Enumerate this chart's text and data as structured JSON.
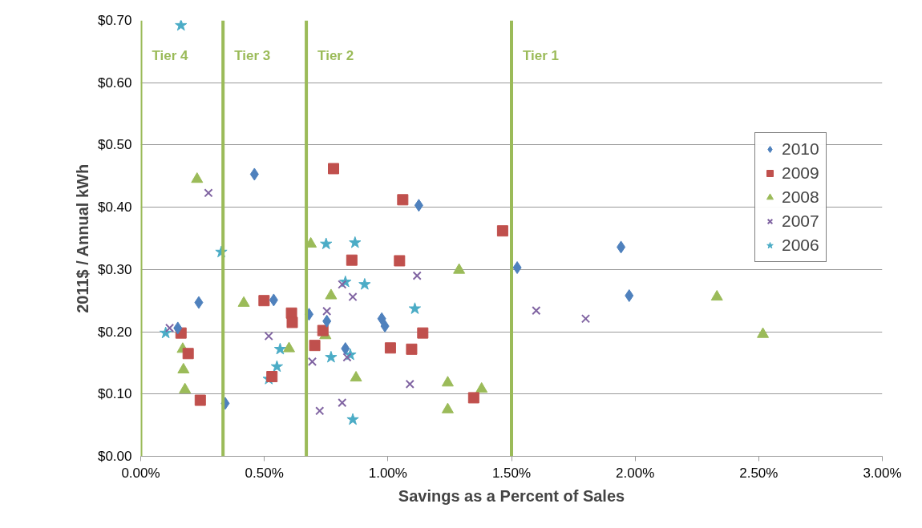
{
  "chart_data": {
    "type": "scatter",
    "xlabel": "Savings as a Percent of Sales",
    "ylabel": "2011$ / Annual kWh",
    "xlim": [
      0,
      3
    ],
    "xticks": [
      {
        "value": 0,
        "label": "0.00%"
      },
      {
        "value": 0.5,
        "label": "0.50%"
      },
      {
        "value": 1,
        "label": "1.00%"
      },
      {
        "value": 1.5,
        "label": "1.50%"
      },
      {
        "value": 2,
        "label": "2.00%"
      },
      {
        "value": 2.5,
        "label": "2.50%"
      },
      {
        "value": 3,
        "label": "3.00%"
      }
    ],
    "ylim": [
      0,
      0.7
    ],
    "yticks": [
      {
        "value": 0,
        "label": "$0.00"
      },
      {
        "value": 0.1,
        "label": "$0.10"
      },
      {
        "value": 0.2,
        "label": "$0.20"
      },
      {
        "value": 0.3,
        "label": "$0.30"
      },
      {
        "value": 0.4,
        "label": "$0.40"
      },
      {
        "value": 0.5,
        "label": "$0.50"
      },
      {
        "value": 0.6,
        "label": "$0.60"
      },
      {
        "value": 0.7,
        "label": "$0.70"
      }
    ],
    "grid": "y",
    "legend": "top right",
    "ref_lines": [
      {
        "axis": "x",
        "value": 0,
        "label": "Tier 4",
        "color": "#9bbb59"
      },
      {
        "axis": "x",
        "value": 0.333,
        "label": "Tier 3",
        "color": "#9bbb59"
      },
      {
        "axis": "x",
        "value": 0.67,
        "label": "Tier 2",
        "color": "#9bbb59"
      },
      {
        "axis": "x",
        "value": 1.5,
        "label": "Tier 1",
        "color": "#9bbb59"
      }
    ],
    "series": [
      {
        "name": "2010",
        "color": "#4f81bd",
        "marker": "diamond",
        "x": [
          0.46,
          0.235,
          0.538,
          0.681,
          0.753,
          0.975,
          0.988,
          0.15,
          0.828,
          0.342,
          1.125,
          1.523,
          1.943,
          1.976
        ],
        "values": [
          0.453,
          0.247,
          0.251,
          0.228,
          0.217,
          0.221,
          0.209,
          0.206,
          0.173,
          0.085,
          0.403,
          0.303,
          0.336,
          0.258
        ]
      },
      {
        "name": "2009",
        "color": "#c0504d",
        "marker": "square",
        "x": [
          0.78,
          0.854,
          0.499,
          0.61,
          0.613,
          0.163,
          0.737,
          1.01,
          0.192,
          0.704,
          0.531,
          0.241,
          1.06,
          1.464,
          1.047,
          1.141,
          1.096,
          1.347
        ],
        "values": [
          0.462,
          0.315,
          0.25,
          0.23,
          0.215,
          0.198,
          0.202,
          0.174,
          0.165,
          0.178,
          0.128,
          0.09,
          0.412,
          0.362,
          0.314,
          0.198,
          0.172,
          0.094
        ]
      },
      {
        "name": "2008",
        "color": "#9bbb59",
        "marker": "triangle",
        "x": [
          0.228,
          0.688,
          0.417,
          0.77,
          0.747,
          0.17,
          0.6,
          0.173,
          0.871,
          0.179,
          1.288,
          1.242,
          1.379,
          1.242,
          2.331,
          2.517
        ],
        "values": [
          0.445,
          0.341,
          0.246,
          0.258,
          0.194,
          0.172,
          0.173,
          0.139,
          0.126,
          0.107,
          0.299,
          0.118,
          0.108,
          0.075,
          0.256,
          0.196
        ]
      },
      {
        "name": "2007",
        "color": "#8064a2",
        "marker": "cross",
        "x": [
          0.274,
          0.815,
          0.858,
          0.753,
          0.117,
          0.518,
          0.694,
          0.835,
          0.724,
          0.815,
          1.118,
          1.6,
          1.8,
          1.089
        ],
        "values": [
          0.423,
          0.276,
          0.256,
          0.233,
          0.206,
          0.193,
          0.152,
          0.159,
          0.073,
          0.086,
          0.29,
          0.234,
          0.221,
          0.116
        ]
      },
      {
        "name": "2006",
        "color": "#4bacc6",
        "marker": "star",
        "x": [
          0.163,
          0.75,
          0.867,
          0.326,
          0.828,
          0.906,
          0.101,
          0.564,
          0.77,
          0.848,
          0.551,
          0.518,
          0.858,
          1.109
        ],
        "values": [
          0.692,
          0.341,
          0.343,
          0.328,
          0.28,
          0.276,
          0.198,
          0.172,
          0.159,
          0.163,
          0.144,
          0.124,
          0.059,
          0.237
        ]
      }
    ]
  }
}
